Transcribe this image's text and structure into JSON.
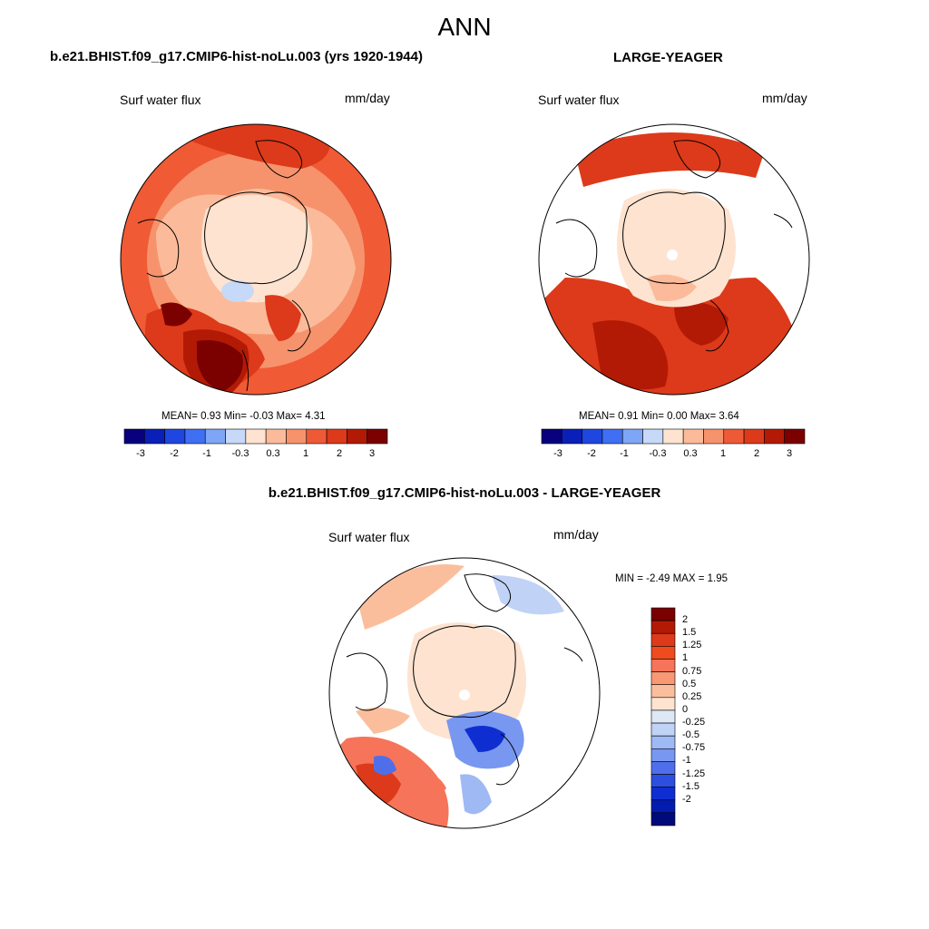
{
  "main_title": "ANN",
  "panel1": {
    "title": "b.e21.BHIST.f09_g17.CMIP6-hist-noLu.003 (yrs 1920-1944)",
    "variable": "Surf water flux",
    "units": "mm/day",
    "stats": "MEAN=   0.93  Min=  -0.03  Max=   4.31"
  },
  "panel2": {
    "title": "LARGE-YEAGER",
    "variable": "Surf water flux",
    "units": "mm/day",
    "stats": "MEAN=   0.91  Min=   0.00  Max=   3.64"
  },
  "panel3": {
    "title": "b.e21.BHIST.f09_g17.CMIP6-hist-noLu.003 - LARGE-YEAGER",
    "variable": "Surf water flux",
    "units": "mm/day",
    "stats": "MIN =  -2.49 MAX =   1.95"
  },
  "colorbar_top": {
    "colors": [
      "#08007c",
      "#0a1fb8",
      "#1e46e0",
      "#3f6ff2",
      "#7fa6f6",
      "#c6d9f8",
      "#fde3d0",
      "#fbbb9a",
      "#f6936d",
      "#ef5a36",
      "#dc3a1a",
      "#b21a06",
      "#7b0000"
    ],
    "labels": [
      "-3",
      "-2",
      "-1",
      "-0.3",
      "0.3",
      "1",
      "2",
      "3"
    ]
  },
  "colorbar_diff": {
    "colors": [
      "#7b0000",
      "#b21a06",
      "#dc3a1a",
      "#f04a1f",
      "#f6745a",
      "#f99874",
      "#fbbe9c",
      "#fde3d0",
      "#dde7f5",
      "#c0d2f5",
      "#9eb9f4",
      "#7897f0",
      "#4f6fea",
      "#2c4fe0",
      "#0f2ed2",
      "#041cae",
      "#000a7a"
    ],
    "labels": [
      "2",
      "1.5",
      "1.25",
      "1",
      "0.75",
      "0.5",
      "0.25",
      "0",
      "-0.25",
      "-0.5",
      "-0.75",
      "-1",
      "-1.25",
      "-1.5",
      "-2"
    ]
  }
}
